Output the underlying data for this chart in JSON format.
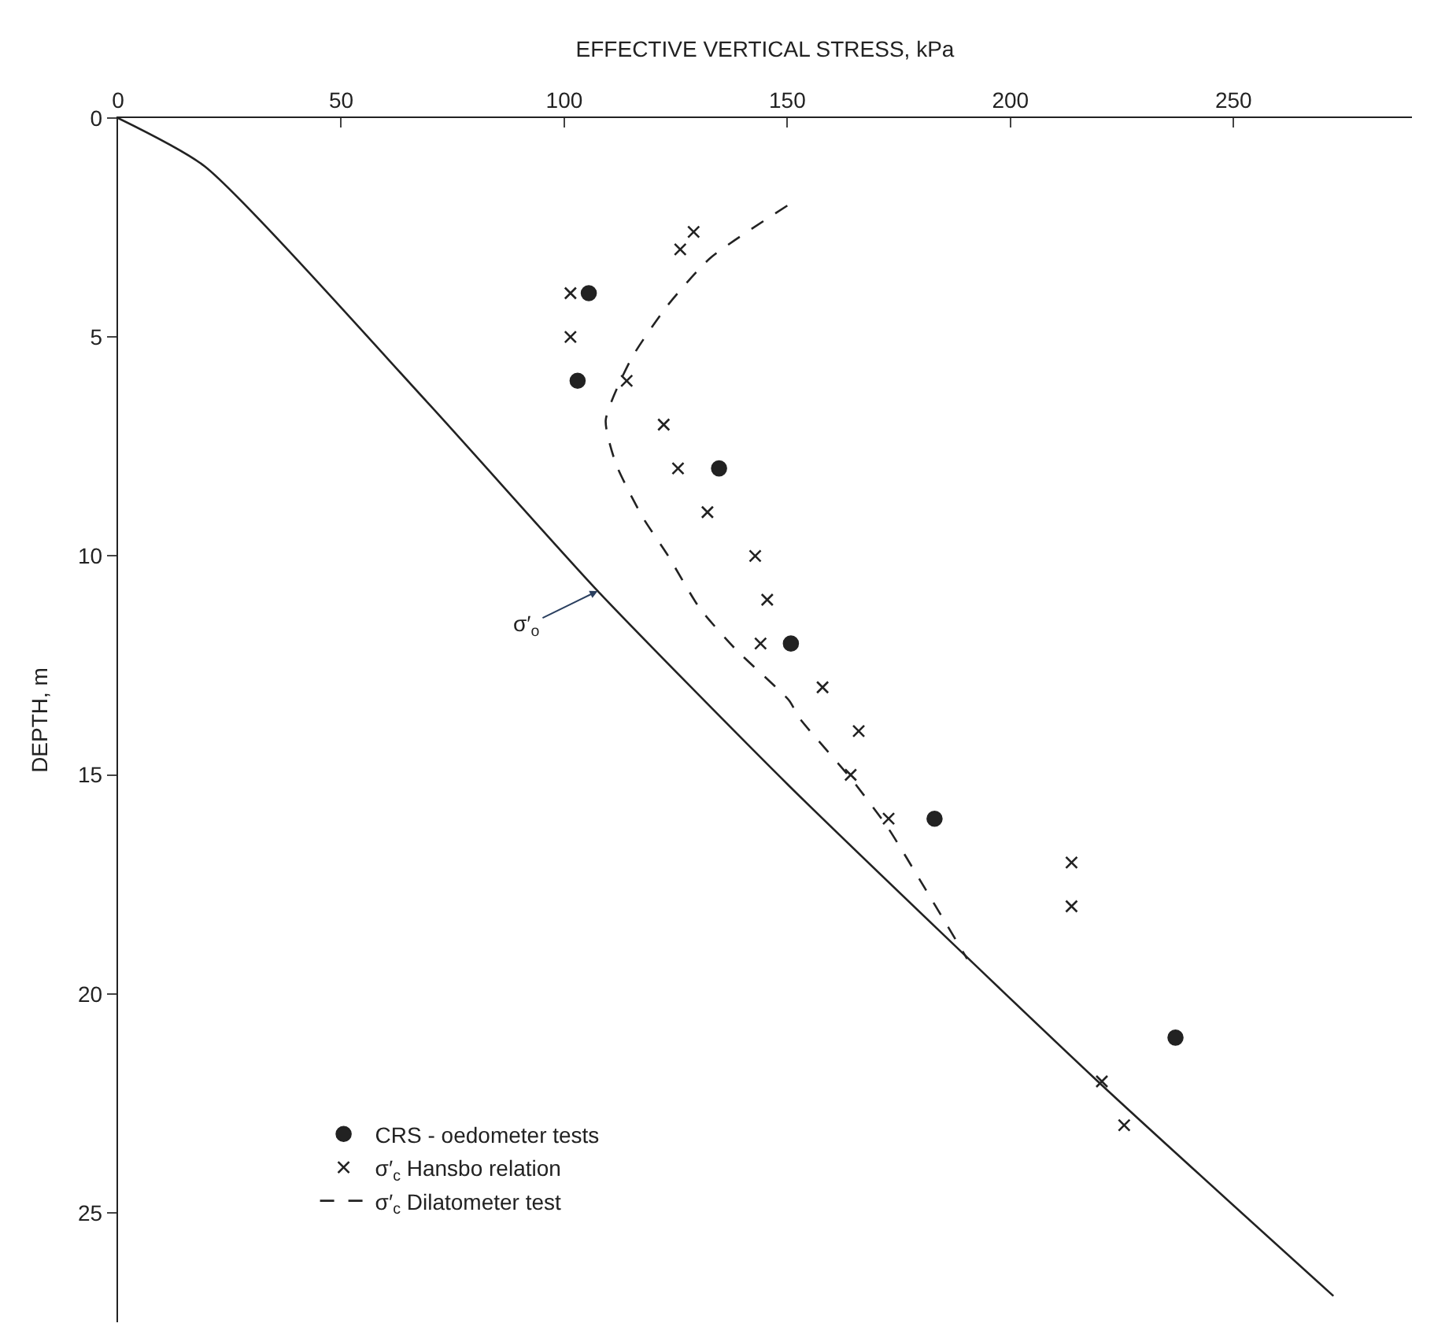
{
  "chart_data": {
    "type": "scatter",
    "xlabel": "EFFECTIVE VERTICAL STRESS, kPa",
    "ylabel": "DEPTH, m",
    "xlim": [
      0,
      290
    ],
    "xticks": [
      0,
      50,
      100,
      150,
      200,
      250
    ],
    "ylim": [
      27.5,
      0
    ],
    "yticks": [
      0,
      5,
      10,
      15,
      20,
      25
    ],
    "grid": false,
    "legend": "bottom left",
    "series": [
      {
        "name": "CRS - oedometer tests",
        "marker": "circle",
        "color": "#222222",
        "x": [
          105.5,
          103,
          134.7,
          150.8,
          183,
          237
        ],
        "values": [
          4,
          6,
          8,
          12,
          16,
          21
        ]
      },
      {
        "name": "σ′$_{c}$ Hansbo relation",
        "marker": "cross",
        "color": "#222222",
        "x": [
          129,
          126,
          101.4,
          101.4,
          114,
          122.3,
          125.5,
          132.1,
          142.8,
          145.5,
          144,
          157.9,
          166,
          164.2,
          172.7,
          213.7,
          213.7,
          220.5,
          225.5
        ],
        "values": [
          2.6,
          3,
          4,
          5,
          6,
          7,
          8,
          9,
          10,
          11,
          12,
          13,
          14,
          15,
          16,
          17,
          18,
          22,
          23
        ]
      },
      {
        "name": "σ′$_{c}$ Dilatometer test",
        "type": "line",
        "line_style": "dashed",
        "marker": "none",
        "color": "#222222",
        "x": [
          150,
          132.7,
          123,
          115,
          109.3,
          111.6,
          117.5,
          123.3,
          130.4,
          138.6,
          150.4,
          152.7,
          164.4,
          172.5,
          180.9,
          190.3
        ],
        "values": [
          2.0,
          3.2,
          4.3,
          5.5,
          6.9,
          7.9,
          9.1,
          10.0,
          11.2,
          12.15,
          13.3,
          13.7,
          15.1,
          16.2,
          17.6,
          19.2
        ]
      },
      {
        "type": "line",
        "line_style": "solid",
        "marker": "none",
        "color": "#222222",
        "x": [
          0,
          19.4,
          69.4,
          107.5,
          150.4,
          219.6,
          272.4
        ],
        "values": [
          0,
          1.1,
          6.5,
          10.8,
          15.25,
          22.0,
          26.9
        ]
      }
    ],
    "annotations": [
      {
        "text": "σ′$_{o}$",
        "x": 107.5,
        "y": 10.8
      }
    ]
  }
}
